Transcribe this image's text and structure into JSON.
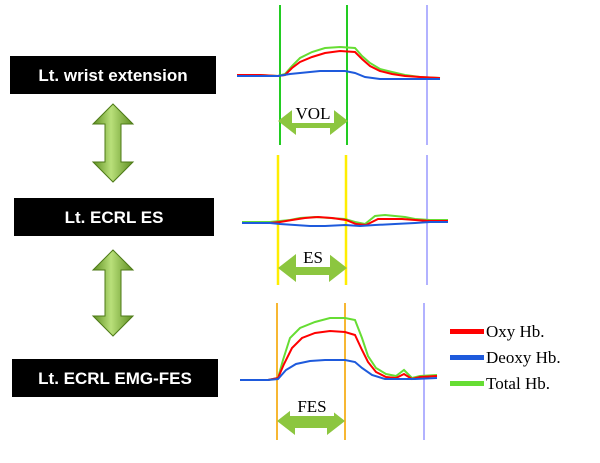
{
  "conditions": [
    {
      "label": "Lt. wrist extension",
      "period_label": "VOL"
    },
    {
      "label": "Lt. ECRL ES",
      "period_label": "ES"
    },
    {
      "label": "Lt. ECRL EMG-FES",
      "period_label": "FES"
    }
  ],
  "legend": [
    {
      "label": "Oxy Hb.",
      "color": "#ff0000"
    },
    {
      "label": "Deoxy Hb.",
      "color": "#1e5adc"
    },
    {
      "label": "Total Hb.",
      "color": "#66dd33"
    }
  ],
  "colors": {
    "label_bg": "#000000",
    "arrow_green": "#8cc63f",
    "marker_green": "#22cc22",
    "marker_yellow": "#ffee00",
    "marker_orange": "#f7b733",
    "marker_end": "#9999ff"
  }
}
